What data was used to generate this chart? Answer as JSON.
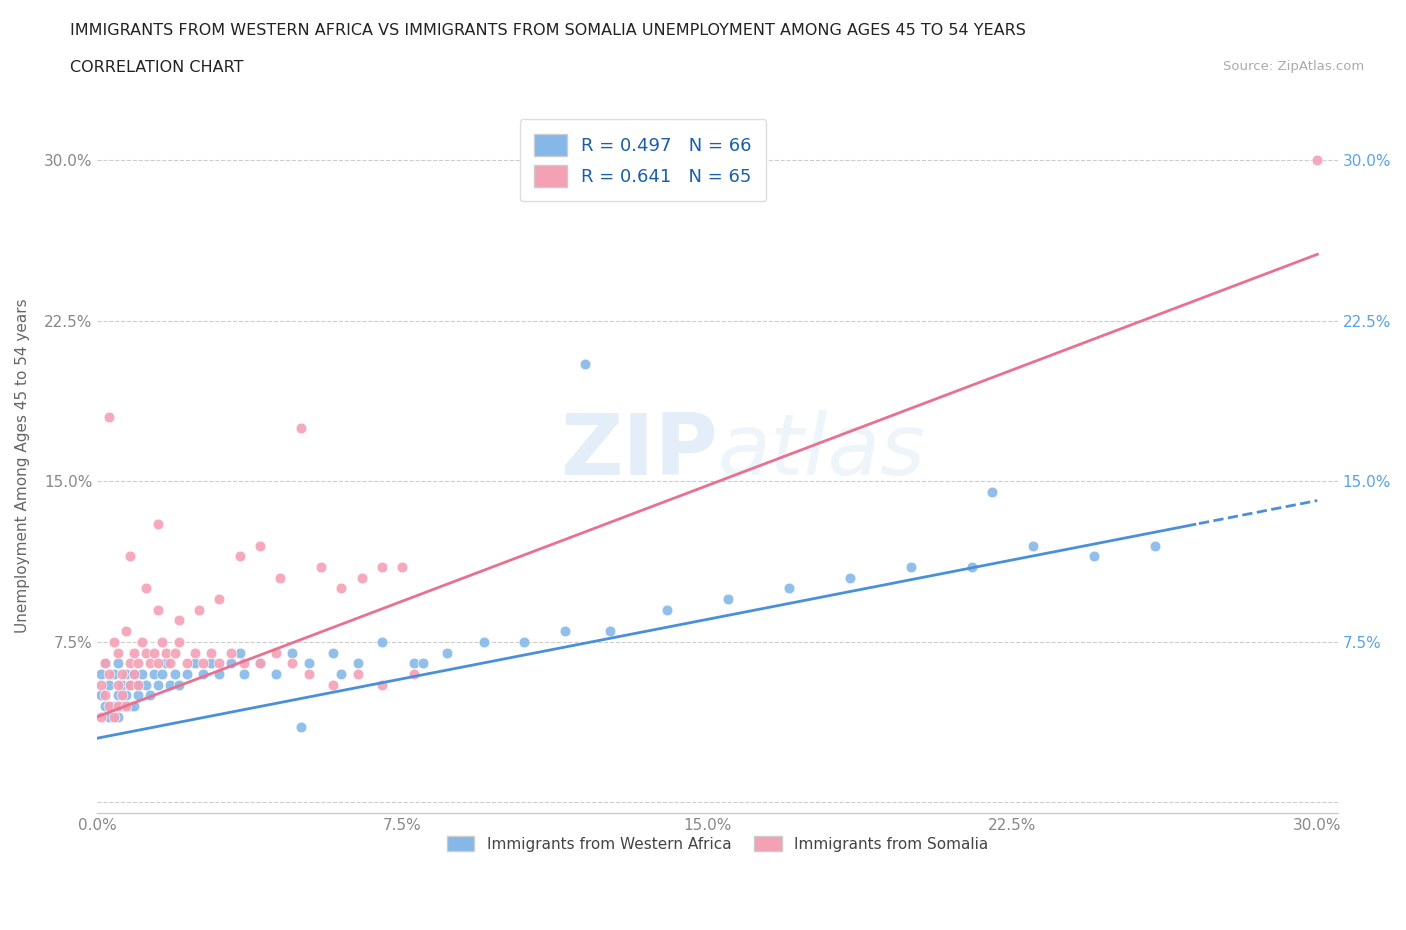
{
  "title_line1": "IMMIGRANTS FROM WESTERN AFRICA VS IMMIGRANTS FROM SOMALIA UNEMPLOYMENT AMONG AGES 45 TO 54 YEARS",
  "title_line2": "CORRELATION CHART",
  "source_text": "Source: ZipAtlas.com",
  "ylabel": "Unemployment Among Ages 45 to 54 years",
  "xlim": [
    0.0,
    0.305
  ],
  "ylim": [
    -0.005,
    0.32
  ],
  "xticks": [
    0.0,
    0.075,
    0.15,
    0.225,
    0.3
  ],
  "yticks": [
    0.0,
    0.075,
    0.15,
    0.225,
    0.3
  ],
  "blue_color": "#85b8e8",
  "pink_color": "#f4a0b5",
  "blue_line_color": "#4a90d9",
  "pink_line_color": "#e87090",
  "right_tick_color": "#5ba3e0",
  "legend_label1": "Immigrants from Western Africa",
  "legend_label2": "Immigrants from Somalia",
  "blue_intercept": 0.03,
  "blue_slope": 0.37,
  "pink_intercept": 0.04,
  "pink_slope": 0.72,
  "blue_scatter_x": [
    0.001,
    0.001,
    0.002,
    0.002,
    0.003,
    0.003,
    0.004,
    0.004,
    0.005,
    0.005,
    0.005,
    0.006,
    0.006,
    0.007,
    0.007,
    0.008,
    0.008,
    0.009,
    0.009,
    0.01,
    0.01,
    0.011,
    0.012,
    0.013,
    0.014,
    0.015,
    0.016,
    0.017,
    0.018,
    0.019,
    0.02,
    0.022,
    0.024,
    0.026,
    0.028,
    0.03,
    0.033,
    0.036,
    0.04,
    0.044,
    0.048,
    0.052,
    0.058,
    0.064,
    0.07,
    0.078,
    0.086,
    0.095,
    0.105,
    0.115,
    0.126,
    0.14,
    0.155,
    0.17,
    0.185,
    0.2,
    0.215,
    0.23,
    0.245,
    0.26,
    0.12,
    0.22,
    0.05,
    0.035,
    0.08,
    0.06
  ],
  "blue_scatter_y": [
    0.05,
    0.06,
    0.045,
    0.065,
    0.04,
    0.055,
    0.045,
    0.06,
    0.05,
    0.04,
    0.065,
    0.055,
    0.045,
    0.06,
    0.05,
    0.045,
    0.055,
    0.06,
    0.045,
    0.05,
    0.055,
    0.06,
    0.055,
    0.05,
    0.06,
    0.055,
    0.06,
    0.065,
    0.055,
    0.06,
    0.055,
    0.06,
    0.065,
    0.06,
    0.065,
    0.06,
    0.065,
    0.06,
    0.065,
    0.06,
    0.07,
    0.065,
    0.07,
    0.065,
    0.075,
    0.065,
    0.07,
    0.075,
    0.075,
    0.08,
    0.08,
    0.09,
    0.095,
    0.1,
    0.105,
    0.11,
    0.11,
    0.12,
    0.115,
    0.12,
    0.205,
    0.145,
    0.035,
    0.07,
    0.065,
    0.06
  ],
  "pink_scatter_x": [
    0.001,
    0.001,
    0.002,
    0.002,
    0.003,
    0.003,
    0.004,
    0.004,
    0.005,
    0.005,
    0.005,
    0.006,
    0.006,
    0.007,
    0.007,
    0.008,
    0.008,
    0.009,
    0.009,
    0.01,
    0.01,
    0.011,
    0.012,
    0.013,
    0.014,
    0.015,
    0.016,
    0.017,
    0.018,
    0.019,
    0.02,
    0.022,
    0.024,
    0.026,
    0.028,
    0.03,
    0.033,
    0.036,
    0.04,
    0.044,
    0.048,
    0.052,
    0.058,
    0.064,
    0.07,
    0.078,
    0.03,
    0.025,
    0.02,
    0.015,
    0.012,
    0.008,
    0.045,
    0.055,
    0.035,
    0.04,
    0.06,
    0.065,
    0.07,
    0.075,
    0.05,
    0.015,
    0.003,
    0.3
  ],
  "pink_scatter_y": [
    0.04,
    0.055,
    0.05,
    0.065,
    0.045,
    0.06,
    0.04,
    0.075,
    0.045,
    0.055,
    0.07,
    0.05,
    0.06,
    0.045,
    0.08,
    0.055,
    0.065,
    0.06,
    0.07,
    0.055,
    0.065,
    0.075,
    0.07,
    0.065,
    0.07,
    0.065,
    0.075,
    0.07,
    0.065,
    0.07,
    0.075,
    0.065,
    0.07,
    0.065,
    0.07,
    0.065,
    0.07,
    0.065,
    0.065,
    0.07,
    0.065,
    0.06,
    0.055,
    0.06,
    0.055,
    0.06,
    0.095,
    0.09,
    0.085,
    0.09,
    0.1,
    0.115,
    0.105,
    0.11,
    0.115,
    0.12,
    0.1,
    0.105,
    0.11,
    0.11,
    0.175,
    0.13,
    0.18,
    0.3
  ]
}
